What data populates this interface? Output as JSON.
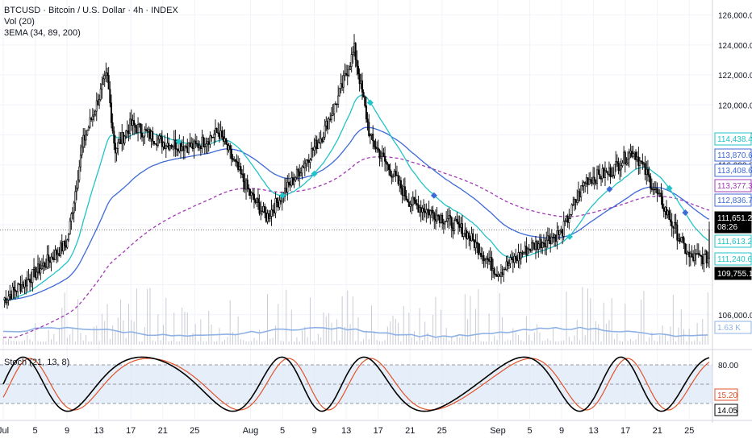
{
  "header": {
    "title": "BTCUSD · Bitcoin / U.S. Dollar · 4h · INDEX",
    "vol_label": "Vol (20)",
    "ema_label": "3EMA (34, 89, 200)",
    "stoch_label": "Stoch (21, 13, 8)"
  },
  "colors": {
    "candle": "#000000",
    "ema34": "#22c3c8",
    "ema89": "#3d6ad6",
    "ema200": "#a23bb5",
    "volume": "#c9ccd3",
    "volume_ma": "#8fb2e6",
    "stoch_k": "#000000",
    "stoch_d": "#e0532a",
    "stoch_band": "#dbe8f6"
  },
  "price_axis_ticks": [
    "126,000.00",
    "124,000.00",
    "122,000.00",
    "120,000.00",
    "118,000.00",
    "116,000.00",
    "106,000.00"
  ],
  "price_badges": [
    {
      "text": "114,438.48",
      "color": "#22c3c8"
    },
    {
      "text": "113,870.63",
      "color": "#3d6ad6"
    },
    {
      "text": "113,408.65",
      "color": "#3d6ad6"
    },
    {
      "text": "113,377.34",
      "color": "#a23bb5"
    },
    {
      "text": "112,836.76",
      "color": "#3d6ad6"
    },
    {
      "text": "111,651.29",
      "color": "#000000",
      "sub": "08:26"
    },
    {
      "text": "111,613.29",
      "color": "#22c3c8"
    },
    {
      "text": "111,240.67",
      "color": "#22c3c8"
    },
    {
      "text": "109,755.17",
      "color": "#000000"
    },
    {
      "text": "1.63 K",
      "color": "#8fb2e6"
    }
  ],
  "stoch_axis": {
    "upper": "80.00",
    "d_value": "15.20",
    "k_value": "14.05"
  },
  "x_axis_labels": [
    "Jul",
    "5",
    "9",
    "13",
    "17",
    "21",
    "25",
    "Aug",
    "5",
    "9",
    "13",
    "17",
    "21",
    "25",
    "Sep",
    "5",
    "9",
    "13",
    "17",
    "21",
    "25"
  ],
  "chart_data": {
    "type": "candlestick",
    "symbol": "BTCUSD",
    "interval": "4h",
    "y_range": [
      104000,
      127000
    ],
    "approx_path": [
      {
        "x": "Jul 1",
        "close": 107000
      },
      {
        "x": "Jul 4",
        "close": 108300
      },
      {
        "x": "Jul 9",
        "close": 110800
      },
      {
        "x": "Jul 11",
        "close": 117500
      },
      {
        "x": "Jul 14",
        "close": 122000
      },
      {
        "x": "Jul 15",
        "close": 117000
      },
      {
        "x": "Jul 17",
        "close": 118700
      },
      {
        "x": "Jul 21",
        "close": 117500
      },
      {
        "x": "Jul 25",
        "close": 117200
      },
      {
        "x": "Jul 28",
        "close": 118200
      },
      {
        "x": "Aug 1",
        "close": 114000
      },
      {
        "x": "Aug 3",
        "close": 112500
      },
      {
        "x": "Aug 7",
        "close": 115500
      },
      {
        "x": "Aug 10",
        "close": 118000
      },
      {
        "x": "Aug 12",
        "close": 120500
      },
      {
        "x": "Aug 14",
        "close": 123700
      },
      {
        "x": "Aug 16",
        "close": 117800
      },
      {
        "x": "Aug 21",
        "close": 113500
      },
      {
        "x": "Aug 25",
        "close": 112500
      },
      {
        "x": "Aug 28",
        "close": 111500
      },
      {
        "x": "Sep 1",
        "close": 108800
      },
      {
        "x": "Sep 5",
        "close": 110500
      },
      {
        "x": "Sep 9",
        "close": 111500
      },
      {
        "x": "Sep 12",
        "close": 115000
      },
      {
        "x": "Sep 15",
        "close": 115500
      },
      {
        "x": "Sep 18",
        "close": 117000
      },
      {
        "x": "Sep 22",
        "close": 113000
      },
      {
        "x": "Sep 25",
        "close": 109800
      },
      {
        "x": "Sep 27",
        "close": 109800
      }
    ],
    "indicators": {
      "ema34_last": 111613.29,
      "ema89_last": 112836.76,
      "ema200_last": 113377.34,
      "last_price": 111651.29,
      "volume_last": "1.63 K",
      "stoch_k_last": 14.05,
      "stoch_d_last": 15.2
    },
    "grid": true
  }
}
